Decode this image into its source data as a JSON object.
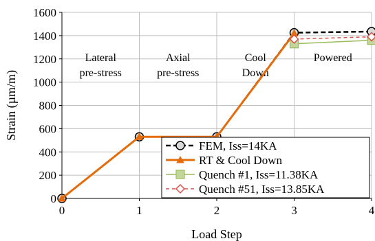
{
  "chart_data": {
    "type": "line",
    "title": "",
    "xlabel": "Load Step",
    "ylabel": "Strain (µm/m)",
    "xlim": [
      0,
      4
    ],
    "ylim": [
      0,
      1600
    ],
    "x_ticks": [
      "0",
      "1",
      "2",
      "3",
      "4"
    ],
    "y_ticks": [
      "0",
      "200",
      "400",
      "600",
      "800",
      "1000",
      "1200",
      "1400",
      "1600"
    ],
    "grid": true,
    "legend_position": "bottom-right",
    "regions": [
      {
        "lines": [
          "Lateral",
          "pre-stress"
        ]
      },
      {
        "lines": [
          "Axial",
          "pre-stress"
        ]
      },
      {
        "lines": [
          "Cool",
          "Down"
        ]
      },
      {
        "lines": [
          "Powered"
        ]
      }
    ],
    "series": [
      {
        "name": "FEM, Iss=14KA",
        "color": "#000000",
        "marker": "circle",
        "x": [
          0,
          1,
          2,
          3,
          4
        ],
        "y": [
          0,
          530,
          530,
          1425,
          1435
        ]
      },
      {
        "name": "RT & Cool Down",
        "color": "#E46C0A",
        "marker": "triangle",
        "x": [
          0,
          1,
          2,
          3
        ],
        "y": [
          0,
          530,
          530,
          1420
        ]
      },
      {
        "name": "Quench    #1, Iss=11.38KA",
        "color": "#9BBB59",
        "marker": "square",
        "x": [
          3,
          4
        ],
        "y": [
          1330,
          1360
        ]
      },
      {
        "name": "Quench #51, Iss=13.85KA",
        "color": "#D9534F",
        "marker": "diamond",
        "x": [
          3,
          4
        ],
        "y": [
          1370,
          1390
        ]
      }
    ]
  }
}
